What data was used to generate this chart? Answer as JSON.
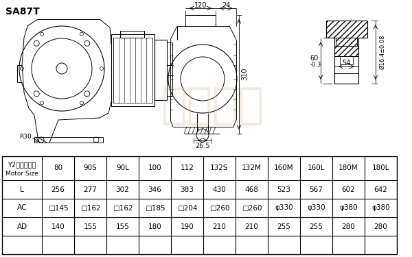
{
  "title": "SA87T",
  "bg_color": "#ffffff",
  "table_header_row": [
    "Y2电机机座号\nMotor Size",
    "80",
    "90S",
    "90L",
    "100",
    "112",
    "132S",
    "132M",
    "160M",
    "160L",
    "180M",
    "180L"
  ],
  "table_rows": [
    [
      "L",
      "256",
      "277",
      "302",
      "346",
      "383",
      "430",
      "468",
      "523",
      "567",
      "602",
      "642"
    ],
    [
      "AC",
      "□145",
      "□162",
      "□162",
      "□185",
      "□204",
      "□260",
      "□260",
      "φ330",
      "φ330",
      "φ380",
      "φ380"
    ],
    [
      "AD",
      "140",
      "155",
      "155",
      "180",
      "190",
      "210",
      "210",
      "255",
      "255",
      "280",
      "280"
    ]
  ],
  "line_color": "#000000",
  "watermark_color": "#d4b896"
}
